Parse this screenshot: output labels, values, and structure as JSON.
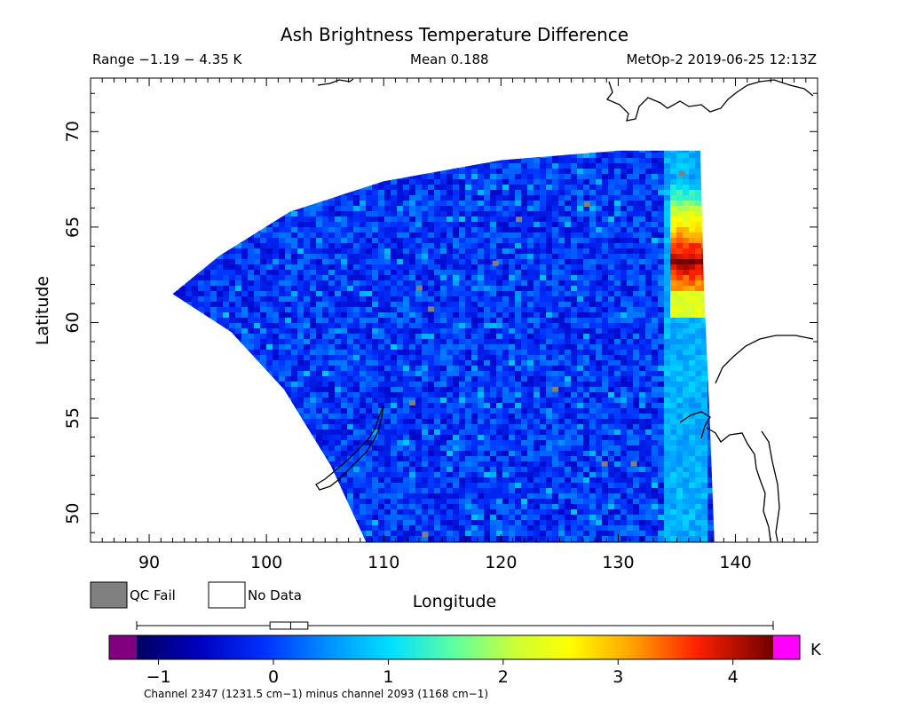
{
  "header": {
    "title": "Ash Brightness Temperature Difference",
    "range_text": "Range −1.19 − 4.35 K",
    "mean_text": "Mean 0.188",
    "satellite_time": "MetOp-2 2019-06-25 12:13Z"
  },
  "map": {
    "x_axis_label": "Longitude",
    "y_axis_label": "Latitude",
    "lon_range": [
      85,
      147
    ],
    "lat_range": [
      48.5,
      72.8
    ],
    "lon_ticks": [
      "90",
      "100",
      "110",
      "120",
      "130",
      "140"
    ],
    "lat_ticks": [
      "50",
      "55",
      "60",
      "65",
      "70"
    ],
    "lon_tick_values": [
      90,
      100,
      110,
      120,
      130,
      140
    ],
    "lat_tick_values": [
      50,
      55,
      60,
      65,
      70
    ],
    "swath": {
      "west_edge": [
        [
          108.5,
          48.5
        ],
        [
          105.5,
          52.5
        ],
        [
          101.5,
          56.5
        ],
        [
          97.0,
          59.5
        ],
        [
          92.0,
          61.5
        ]
      ],
      "north_edge": [
        [
          92.0,
          61.5
        ],
        [
          96.0,
          63.5
        ],
        [
          102.0,
          65.8
        ],
        [
          110.0,
          67.4
        ],
        [
          120.0,
          68.5
        ],
        [
          130.0,
          69.0
        ],
        [
          137.0,
          69.0
        ]
      ],
      "east_edge": [
        [
          137.0,
          69.0
        ],
        [
          137.3,
          62.0
        ],
        [
          137.8,
          55.0
        ],
        [
          138.2,
          48.5
        ]
      ],
      "hotspot": {
        "lon_range": [
          134.3,
          137.2
        ],
        "lat_range": [
          60.5,
          67.5
        ],
        "peak_lat": 63.3
      }
    },
    "gray_pixels": [
      [
        113.0,
        61.8
      ],
      [
        114.0,
        60.7
      ],
      [
        124.6,
        56.5
      ],
      [
        112.4,
        55.8
      ],
      [
        128.8,
        52.6
      ],
      [
        131.3,
        52.6
      ],
      [
        113.5,
        48.9
      ],
      [
        119.5,
        63.1
      ],
      [
        121.5,
        65.4
      ],
      [
        127.3,
        66.2
      ],
      [
        135.4,
        67.8
      ]
    ]
  },
  "legend": {
    "qc_fail_label": "QC Fail",
    "no_data_label": "No Data",
    "qc_fail_color": "#808080",
    "no_data_color": "#ffffff"
  },
  "colorbar": {
    "unit": "K",
    "min": -1.19,
    "max": 4.35,
    "ticks": [
      "−1",
      "0",
      "1",
      "2",
      "3",
      "4"
    ],
    "tick_values": [
      -1,
      0,
      1,
      2,
      3,
      4
    ],
    "under_color": "#800080",
    "over_color": "#ff00ff",
    "caption": "Channel 2347 (1231.5 cm−1) minus channel 2093 (1168 cm−1)",
    "box": {
      "whisker_low": -1.19,
      "q1": -0.03,
      "median": 0.15,
      "q3": 0.3,
      "whisker_high": 4.35
    }
  }
}
